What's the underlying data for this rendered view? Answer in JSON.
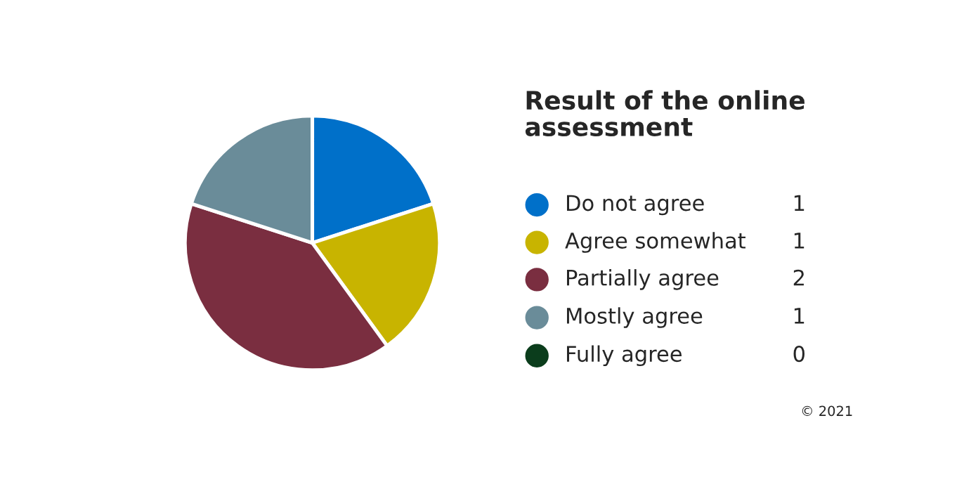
{
  "chart_data": {
    "type": "pie",
    "title": "Result of the online assessment",
    "categories": [
      "Do not agree",
      "Agree somewhat",
      "Partially agree",
      "Mostly agree",
      "Fully agree"
    ],
    "values": [
      1,
      1,
      2,
      1,
      0
    ],
    "colors": [
      "#0070c9",
      "#c8b400",
      "#7a2e40",
      "#6a8c99",
      "#0b3d1c"
    ],
    "legend": "right",
    "value_labels": [
      "1",
      "1",
      "2",
      "1",
      "0"
    ],
    "annotations": [
      "© 2021"
    ]
  }
}
